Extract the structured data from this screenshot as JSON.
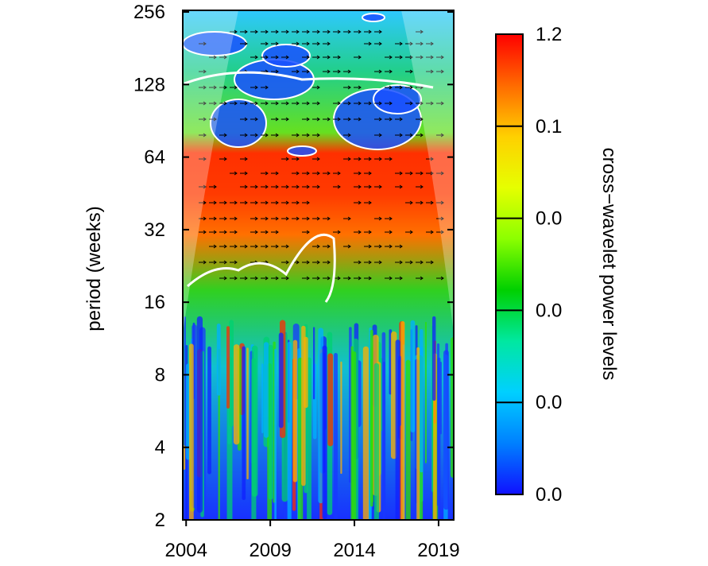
{
  "chart_data": {
    "type": "heatmap",
    "title": "",
    "xlabel": "",
    "ylabel": "period (weeks)",
    "colorbar_label": "cross−wavelet power levels",
    "x_ticks": [
      2004,
      2009,
      2014,
      2019
    ],
    "xlim": [
      2003.8,
      2019.9
    ],
    "y_scale": "log2",
    "y_ticks": [
      2,
      4,
      8,
      16,
      32,
      64,
      128,
      256
    ],
    "ylim": [
      2,
      260
    ],
    "colorbar_ticks": [
      "1.2",
      "0.1",
      "0.0",
      "0.0",
      "0.0",
      "0.0"
    ],
    "colorbar_colors": [
      "#ff0000",
      "#ff6a00",
      "#ffd000",
      "#e6ff00",
      "#8cff00",
      "#00d000",
      "#00e8a0",
      "#00d0ff",
      "#0080ff",
      "#1010ff"
    ],
    "significance_contour_color": "#ffffff",
    "cone_of_influence": "shaded",
    "phase_arrows": true,
    "regions": [
      {
        "band": "periods 40-64 weeks",
        "level": "high"
      },
      {
        "band": "periods 16-40 weeks, 2004-2012",
        "level": "high"
      },
      {
        "band": "periods 70-250 weeks",
        "level": "low to medium"
      },
      {
        "band": "periods 2-16 weeks",
        "level": "mixed, mostly low"
      }
    ]
  }
}
